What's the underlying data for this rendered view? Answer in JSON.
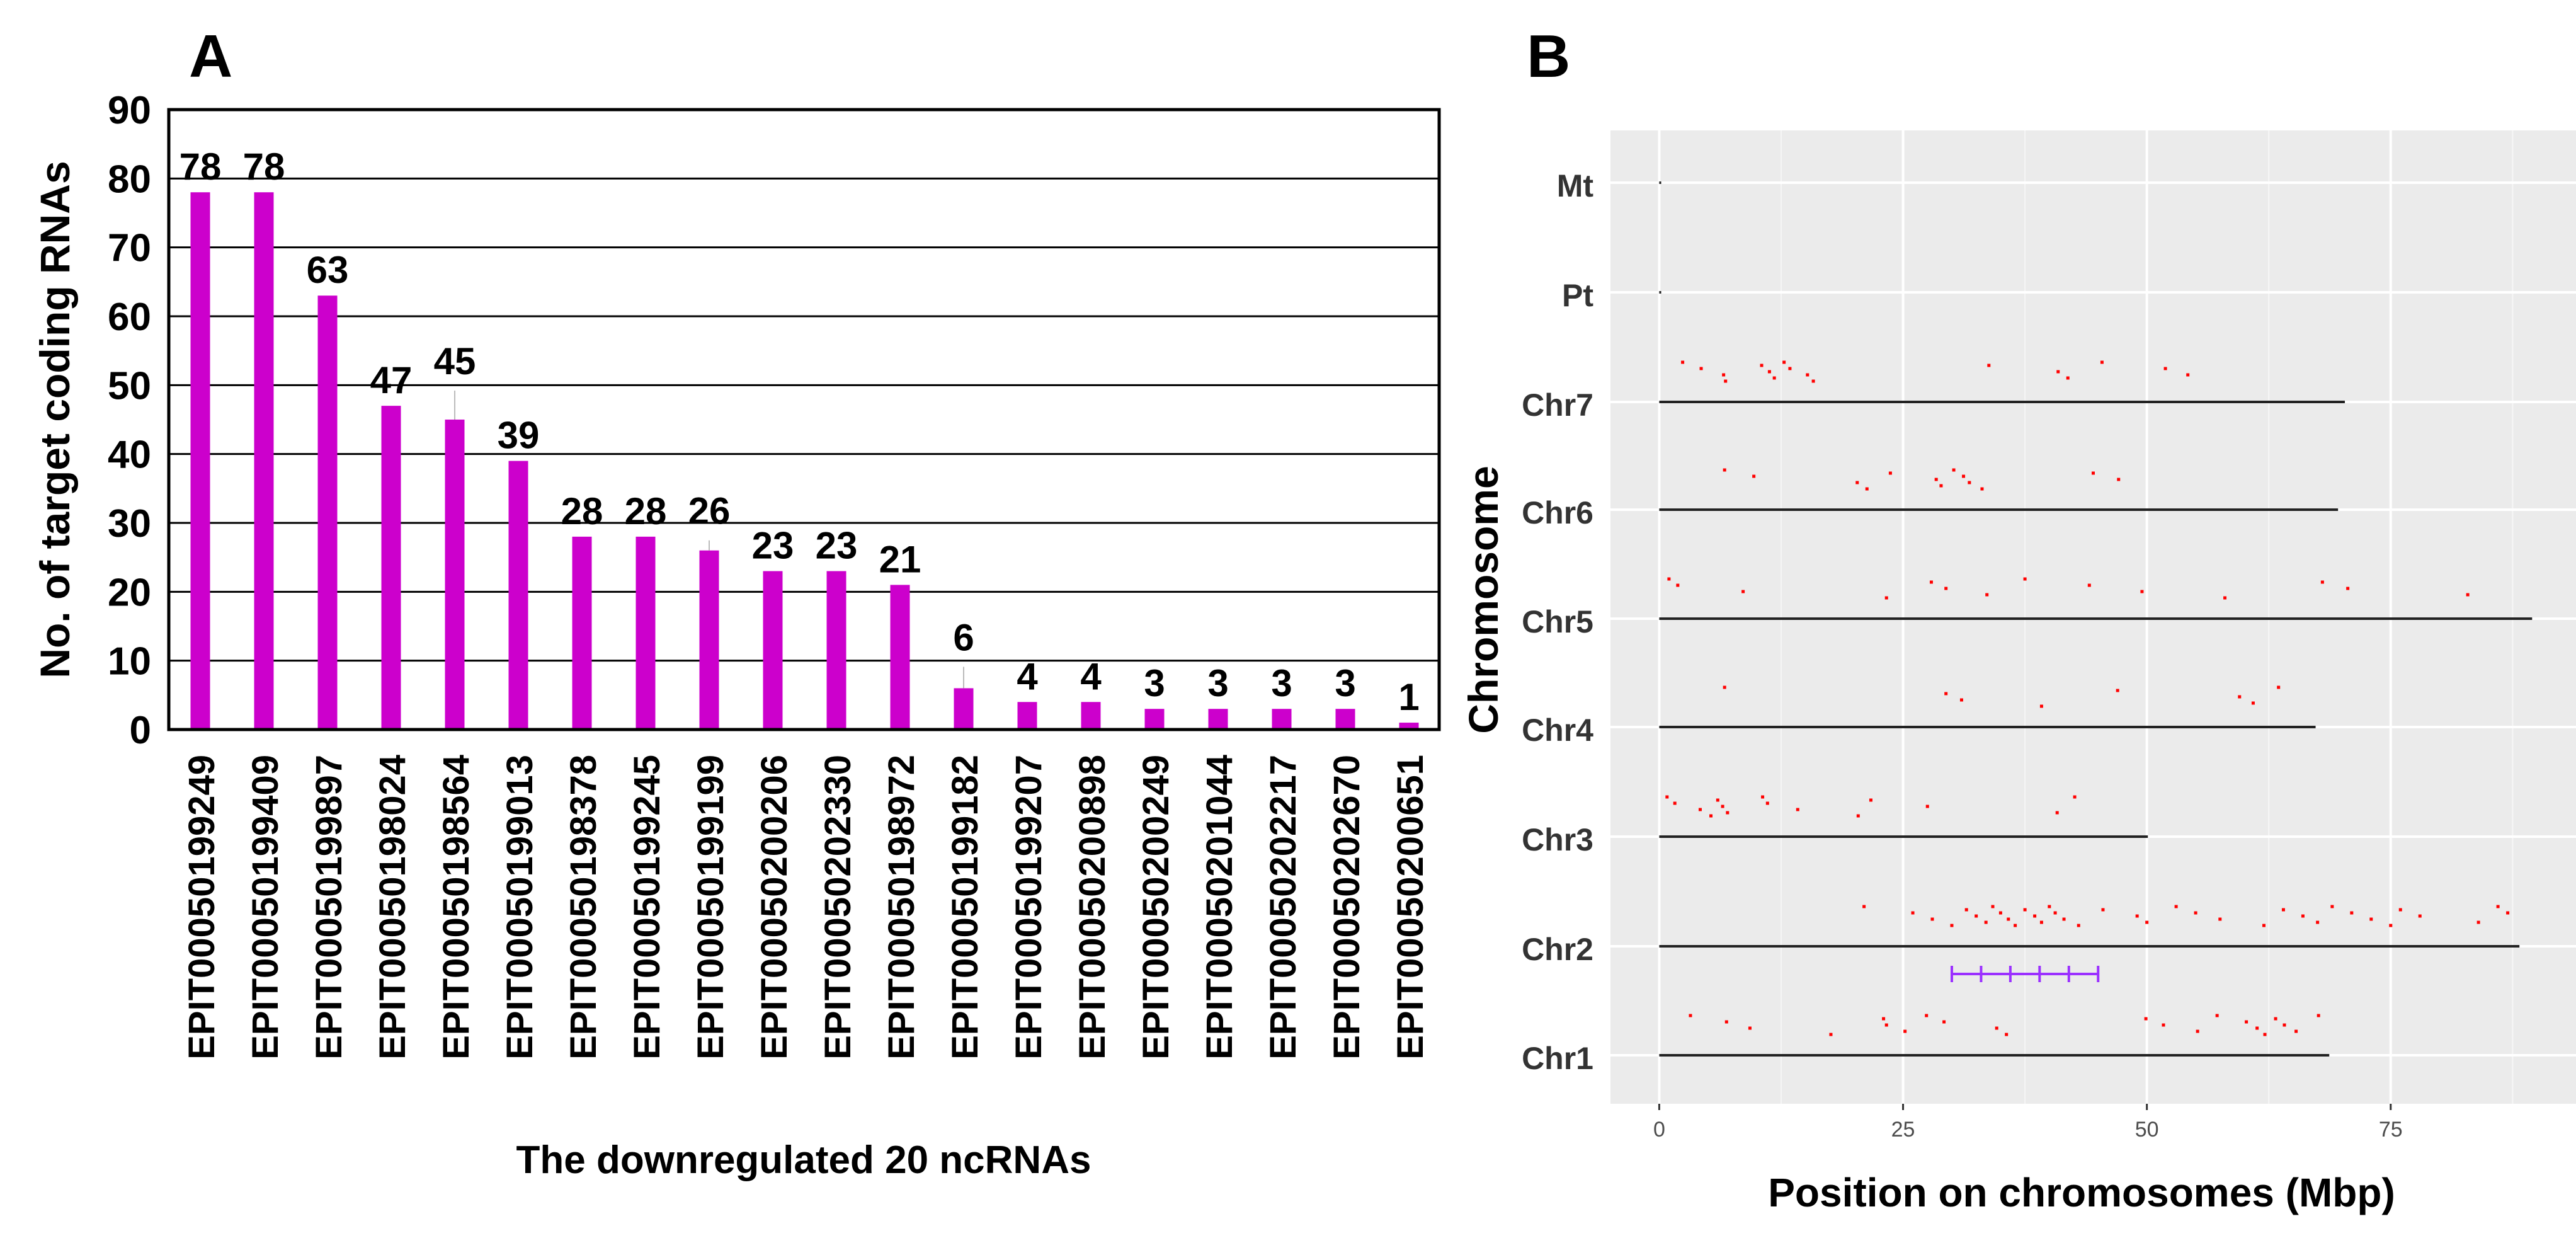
{
  "chart_data": [
    {
      "type": "bar",
      "panel_label": "A",
      "title": "",
      "xlabel": "The downregulated 20 ncRNAs",
      "ylabel": "No. of target coding RNAs",
      "ylim": [
        0,
        90
      ],
      "yticks": [
        0,
        10,
        20,
        30,
        40,
        50,
        60,
        70,
        80,
        90
      ],
      "grid": true,
      "color": "#cc00cc",
      "categories": [
        "EPIT00050199249",
        "EPIT00050199409",
        "EPIT00050199897",
        "EPIT00050198024",
        "EPIT00050198564",
        "EPIT00050199013",
        "EPIT00050198378",
        "EPIT00050199245",
        "EPIT00050199199",
        "EPIT00050200206",
        "EPIT00050202330",
        "EPIT00050198972",
        "EPIT00050199182",
        "EPIT00050199207",
        "EPIT00050200898",
        "EPIT00050200249",
        "EPIT00050201044",
        "EPIT00050202217",
        "EPIT00050202670",
        "EPIT00050200651"
      ],
      "values": [
        78,
        78,
        63,
        47,
        45,
        39,
        28,
        28,
        26,
        23,
        23,
        21,
        6,
        4,
        4,
        3,
        3,
        3,
        3,
        1
      ]
    },
    {
      "type": "scatter",
      "panel_label": "B",
      "title": "",
      "xlabel": "Position on chromosomes (Mbp)",
      "ylabel": "Chromosome",
      "xlim": [
        -5,
        94
      ],
      "xticks": [
        0,
        25,
        50,
        75
      ],
      "background": "#ebebeb",
      "point_color": "#ff0000",
      "interval_color": "#9b30ff",
      "chromosomes": [
        "Mt",
        "Pt",
        "Chr7",
        "Chr6",
        "Chr5",
        "Chr4",
        "Chr3",
        "Chr2",
        "Chr1"
      ],
      "chromosome_lengths": [
        0.2,
        0.2,
        70.3,
        69.6,
        89.5,
        67.3,
        50.1,
        88.2,
        68.7
      ],
      "points": {
        "Chr7": [
          2.4,
          4.3,
          6.6,
          6.8,
          10.5,
          11.3,
          11.8,
          12.8,
          13.4,
          15.2,
          15.8,
          33.8,
          40.9,
          41.9,
          45.4,
          51.9,
          54.2
        ],
        "Chr6": [
          6.7,
          9.7,
          20.3,
          21.3,
          23.7,
          28.4,
          28.9,
          30.2,
          31.2,
          31.8,
          33.1,
          44.5,
          47.1
        ],
        "Chr5": [
          1.0,
          1.9,
          8.6,
          23.3,
          27.9,
          29.4,
          33.6,
          37.5,
          44.1,
          49.5,
          58.0,
          68.0,
          70.6,
          82.9
        ],
        "Chr4": [
          6.7,
          29.4,
          31.0,
          39.2,
          47.0,
          59.5,
          60.9,
          63.5
        ],
        "Chr3": [
          0.8,
          1.6,
          4.2,
          5.3,
          6.0,
          6.5,
          7.0,
          10.6,
          11.1,
          14.2,
          20.4,
          21.7,
          27.5,
          40.8,
          42.6
        ],
        "Chr2": [
          21.0,
          26.0,
          28.0,
          30.0,
          31.5,
          32.5,
          33.5,
          34.2,
          35.0,
          35.8,
          36.5,
          37.5,
          38.5,
          39.2,
          40.0,
          40.6,
          41.5,
          43.0,
          45.5,
          49.0,
          50.0,
          53.0,
          55.0,
          57.5,
          62.0,
          64.0,
          66.0,
          67.5,
          69.0,
          71.0,
          73.0,
          75.0,
          76.0,
          78.0,
          84.0,
          86.0,
          87.0
        ],
        "Chr1": [
          3.2,
          6.9,
          9.3,
          17.6,
          23.0,
          23.3,
          25.2,
          27.4,
          29.2,
          34.6,
          35.6,
          49.9,
          51.7,
          55.2,
          57.2,
          60.2,
          61.3,
          62.1,
          63.2,
          64.1,
          65.3,
          67.6
        ]
      },
      "interval": {
        "chromosome": "Chr2",
        "ticks": [
          30,
          33,
          36,
          39,
          42,
          45
        ]
      }
    }
  ]
}
